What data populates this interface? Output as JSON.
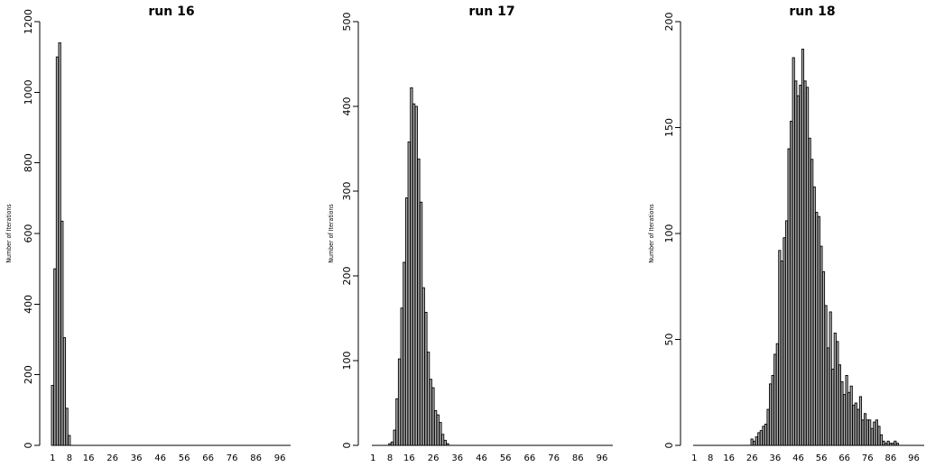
{
  "chart_data": [
    {
      "type": "bar",
      "title": "run 16",
      "ylabel": "Number of Iterations",
      "xlabel": "",
      "ylim": [
        0,
        1200
      ],
      "yticks": [
        0,
        200,
        400,
        600,
        800,
        1000,
        1200
      ],
      "xticks": [
        1,
        8,
        16,
        26,
        36,
        46,
        56,
        66,
        76,
        86,
        96
      ],
      "x_range": [
        1,
        100
      ],
      "categories": [
        1,
        2,
        3,
        4,
        5,
        6,
        7,
        8
      ],
      "values": [
        170,
        500,
        1100,
        1140,
        635,
        305,
        105,
        28
      ]
    },
    {
      "type": "bar",
      "title": "run 17",
      "ylabel": "Number of Iterations",
      "xlabel": "",
      "ylim": [
        0,
        500
      ],
      "yticks": [
        0,
        100,
        200,
        300,
        400,
        500
      ],
      "xticks": [
        1,
        8,
        16,
        26,
        36,
        46,
        56,
        66,
        76,
        86,
        96
      ],
      "x_range": [
        1,
        100
      ],
      "categories": [
        8,
        9,
        10,
        11,
        12,
        13,
        14,
        15,
        16,
        17,
        18,
        19,
        20,
        21,
        22,
        23,
        24,
        25,
        26,
        27,
        28,
        29,
        30,
        31,
        32
      ],
      "values": [
        2,
        4,
        18,
        55,
        102,
        162,
        216,
        292,
        358,
        422,
        403,
        400,
        338,
        287,
        186,
        157,
        110,
        78,
        68,
        41,
        36,
        27,
        13,
        6,
        2
      ]
    },
    {
      "type": "bar",
      "title": "run 18",
      "ylabel": "Number of Iterations",
      "xlabel": "",
      "ylim": [
        0,
        200
      ],
      "yticks": [
        0,
        50,
        100,
        150,
        200
      ],
      "xticks": [
        1,
        8,
        16,
        26,
        36,
        46,
        56,
        66,
        76,
        86,
        96
      ],
      "x_range": [
        1,
        100
      ],
      "categories": [
        26,
        27,
        28,
        29,
        30,
        31,
        32,
        33,
        34,
        35,
        36,
        37,
        38,
        39,
        40,
        41,
        42,
        43,
        44,
        45,
        46,
        47,
        48,
        49,
        50,
        51,
        52,
        53,
        54,
        55,
        56,
        57,
        58,
        59,
        60,
        61,
        62,
        63,
        64,
        65,
        66,
        67,
        68,
        69,
        70,
        71,
        72,
        73,
        74,
        75,
        76,
        77,
        78,
        79,
        80,
        81,
        82,
        83,
        84,
        85,
        86,
        87,
        88,
        89,
        90,
        91,
        92,
        93,
        94,
        95,
        96
      ],
      "values": [
        3,
        2,
        4,
        6,
        7,
        9,
        10,
        17,
        29,
        33,
        43,
        48,
        92,
        87,
        98,
        106,
        140,
        153,
        183,
        172,
        165,
        170,
        187,
        172,
        169,
        145,
        135,
        122,
        110,
        108,
        94,
        82,
        66,
        46,
        63,
        36,
        53,
        49,
        38,
        30,
        24,
        33,
        25,
        28,
        19,
        20,
        17,
        23,
        12,
        15,
        12,
        12,
        8,
        11,
        12,
        9,
        5,
        2,
        1,
        2,
        1,
        1,
        2,
        1,
        0,
        0,
        0,
        0,
        0,
        0,
        0
      ]
    }
  ]
}
